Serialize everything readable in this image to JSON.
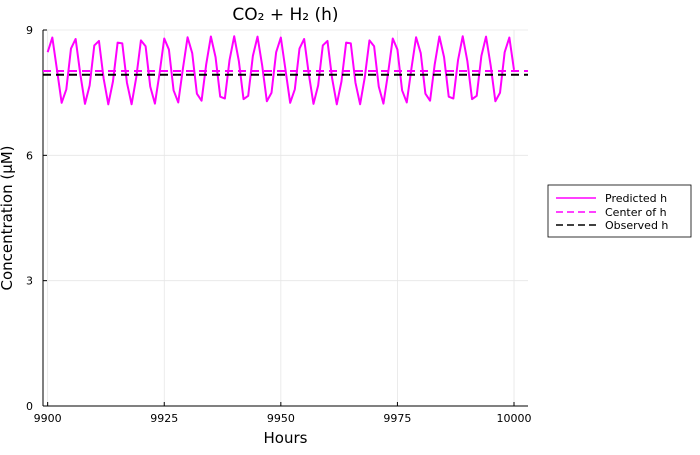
{
  "chart_data": {
    "type": "line",
    "title": "CO₂ + H₂ (h)",
    "xlabel": "Hours",
    "ylabel": "Concentration (μM)",
    "xlim": [
      9899,
      10003
    ],
    "ylim": [
      0,
      9
    ],
    "x_ticks": [
      9900,
      9925,
      9950,
      9975,
      10000
    ],
    "y_ticks": [
      0,
      3,
      6,
      9
    ],
    "grid": true,
    "legend_position": "outside-right",
    "series": [
      {
        "name": "Predicted h",
        "style": "solid",
        "color": "#ff00ff",
        "period_hours": 4.9,
        "x_start": 9900,
        "x_end": 10000,
        "min": 7.22,
        "max": 8.85,
        "first_value": 7.6
      },
      {
        "name": "Center of h",
        "style": "dashed",
        "color": "#ff00ff",
        "x": [
          9899,
          10003
        ],
        "y": [
          8.02,
          8.02
        ]
      },
      {
        "name": "Observed h",
        "style": "dashed",
        "color": "#000000",
        "x": [
          9899,
          10003
        ],
        "y": [
          7.93,
          7.93
        ]
      }
    ]
  }
}
